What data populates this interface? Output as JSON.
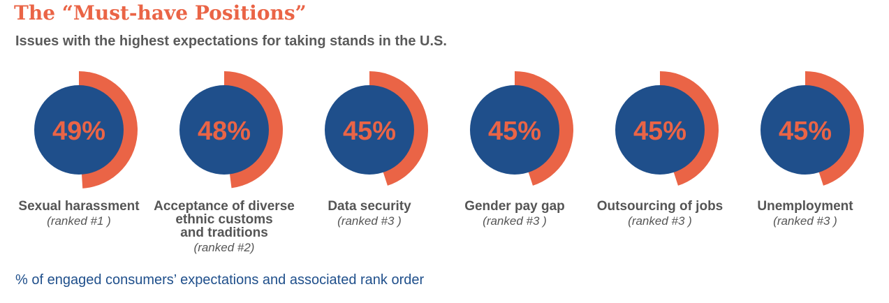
{
  "title": "The “Must-have Positions”",
  "subtitle": "Issues with the highest expectations for taking stands in the U.S.",
  "note": "% of engaged consumers’ expectations and associated rank order",
  "colors": {
    "arc": "#ea6446",
    "circle": "#1f4f8b",
    "percent_text": "#ea6446",
    "label_text": "#555555"
  },
  "chart_data": {
    "type": "pie",
    "title": "The “Must-have Positions”",
    "subtitle": "Issues with the highest expectations for taking stands in the U.S.",
    "items": [
      {
        "category_lines": [
          "Sexual harassment"
        ],
        "value": 49,
        "value_label": "49%",
        "rank_label": "(ranked #1 )"
      },
      {
        "category_lines": [
          "Acceptance of diverse",
          "ethnic customs",
          "and traditions"
        ],
        "value": 48,
        "value_label": "48%",
        "rank_label": "(ranked #2)"
      },
      {
        "category_lines": [
          "Data security"
        ],
        "value": 45,
        "value_label": "45%",
        "rank_label": "(ranked #3 )"
      },
      {
        "category_lines": [
          "Gender pay gap"
        ],
        "value": 45,
        "value_label": "45%",
        "rank_label": "(ranked #3 )"
      },
      {
        "category_lines": [
          "Outsourcing of jobs"
        ],
        "value": 45,
        "value_label": "45%",
        "rank_label": "(ranked #3 )"
      },
      {
        "category_lines": [
          "Unemployment"
        ],
        "value": 45,
        "value_label": "45%",
        "rank_label": "(ranked #3 )"
      }
    ]
  }
}
